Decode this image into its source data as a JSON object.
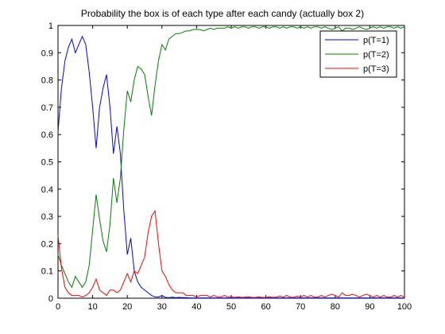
{
  "chart_data": {
    "type": "line",
    "title": "Probability the box is of each type after each candy (actually box 2)",
    "xlabel": "",
    "ylabel": "",
    "xlim": [
      0,
      100
    ],
    "ylim": [
      0,
      1
    ],
    "xticks": [
      "0",
      "10",
      "20",
      "30",
      "40",
      "50",
      "60",
      "70",
      "80",
      "90",
      "100"
    ],
    "yticks": [
      "0",
      "0.1",
      "0.2",
      "0.3",
      "0.4",
      "0.5",
      "0.6",
      "0.7",
      "0.8",
      "0.9",
      "1"
    ],
    "grid": false,
    "legend_placement": "top-right",
    "x": [
      0,
      1,
      2,
      3,
      4,
      5,
      6,
      7,
      8,
      9,
      10,
      11,
      12,
      13,
      14,
      15,
      16,
      17,
      18,
      19,
      20,
      21,
      22,
      23,
      24,
      25,
      26,
      27,
      28,
      29,
      30,
      31,
      32,
      33,
      34,
      35,
      36,
      37,
      38,
      39,
      40,
      41,
      42,
      43,
      44,
      45,
      46,
      47,
      48,
      49,
      50,
      51,
      52,
      53,
      54,
      55,
      56,
      57,
      58,
      59,
      60,
      61,
      62,
      63,
      64,
      65,
      66,
      67,
      68,
      69,
      70,
      71,
      72,
      73,
      74,
      75,
      76,
      77,
      78,
      79,
      80,
      81,
      82,
      83,
      84,
      85,
      86,
      87,
      88,
      89,
      90,
      91,
      92,
      93,
      94,
      95,
      96,
      97,
      98,
      99,
      100
    ],
    "series": [
      {
        "name": "p(T=1)",
        "color": "#0000ff",
        "values": [
          0.61,
          0.77,
          0.87,
          0.92,
          0.95,
          0.9,
          0.93,
          0.96,
          0.93,
          0.83,
          0.7,
          0.55,
          0.7,
          0.77,
          0.82,
          0.7,
          0.53,
          0.63,
          0.53,
          0.32,
          0.16,
          0.22,
          0.1,
          0.06,
          0.04,
          0.03,
          0.02,
          0.01,
          0.005,
          0.004,
          0.01,
          0.003,
          0.002,
          0.004,
          0.002,
          0.003,
          0.002,
          0.002,
          0.001,
          0.001,
          0.001,
          0.001,
          0.001,
          0.001,
          0.001,
          0.001,
          0.001,
          0.001,
          0.001,
          0.001,
          0.001,
          0.001,
          0.001,
          0.001,
          0.001,
          0.001,
          0.001,
          0.001,
          0.001,
          0.001,
          0.001,
          0.001,
          0.001,
          0.001,
          0.001,
          0.001,
          0.001,
          0.001,
          0.001,
          0.001,
          0.001,
          0.001,
          0.001,
          0.001,
          0.001,
          0.001,
          0.001,
          0.001,
          0.001,
          0.001,
          0.001,
          0.001,
          0.001,
          0.001,
          0.001,
          0.001,
          0.001,
          0.001,
          0.001,
          0.001,
          0.001,
          0.001,
          0.001,
          0.001,
          0.001,
          0.001,
          0.001,
          0.001,
          0.001,
          0.001,
          0.001
        ]
      },
      {
        "name": "p(T=2)",
        "color": "#008000",
        "values": [
          0.16,
          0.12,
          0.09,
          0.06,
          0.04,
          0.08,
          0.06,
          0.04,
          0.06,
          0.12,
          0.25,
          0.38,
          0.29,
          0.21,
          0.17,
          0.27,
          0.44,
          0.35,
          0.44,
          0.62,
          0.76,
          0.72,
          0.8,
          0.85,
          0.84,
          0.82,
          0.74,
          0.67,
          0.78,
          0.87,
          0.93,
          0.91,
          0.95,
          0.96,
          0.97,
          0.97,
          0.975,
          0.98,
          0.98,
          0.985,
          0.985,
          0.985,
          0.98,
          0.985,
          0.99,
          0.985,
          0.99,
          0.99,
          0.99,
          0.995,
          0.99,
          0.995,
          0.99,
          0.995,
          0.995,
          0.99,
          0.995,
          0.995,
          0.99,
          0.995,
          0.995,
          0.99,
          0.995,
          0.995,
          0.99,
          0.995,
          0.99,
          0.995,
          0.995,
          0.99,
          0.995,
          0.99,
          0.995,
          0.99,
          0.995,
          0.995,
          0.99,
          0.995,
          0.99,
          0.985,
          0.99,
          0.995,
          0.98,
          0.99,
          0.99,
          0.985,
          0.99,
          0.995,
          0.99,
          0.985,
          0.99,
          0.995,
          0.99,
          0.995,
          0.99,
          0.995,
          0.995,
          0.99,
          0.995,
          0.99,
          0.995
        ]
      },
      {
        "name": "p(T=3)",
        "color": "#ff0000",
        "values": [
          0.23,
          0.11,
          0.04,
          0.02,
          0.01,
          0.01,
          0.01,
          0.005,
          0.01,
          0.02,
          0.04,
          0.07,
          0.03,
          0.02,
          0.01,
          0.03,
          0.03,
          0.02,
          0.03,
          0.06,
          0.09,
          0.06,
          0.1,
          0.09,
          0.12,
          0.15,
          0.24,
          0.3,
          0.32,
          0.2,
          0.1,
          0.08,
          0.05,
          0.03,
          0.02,
          0.02,
          0.02,
          0.01,
          0.01,
          0.01,
          0.005,
          0.01,
          0.01,
          0.01,
          0.005,
          0.01,
          0.005,
          0.005,
          0.01,
          0.005,
          0.005,
          0.003,
          0.005,
          0.003,
          0.004,
          0.005,
          0.003,
          0.003,
          0.005,
          0.003,
          0.003,
          0.005,
          0.003,
          0.004,
          0.008,
          0.004,
          0.01,
          0.004,
          0.003,
          0.008,
          0.004,
          0.01,
          0.004,
          0.01,
          0.004,
          0.004,
          0.01,
          0.004,
          0.01,
          0.015,
          0.01,
          0.004,
          0.02,
          0.01,
          0.01,
          0.015,
          0.01,
          0.004,
          0.01,
          0.015,
          0.01,
          0.004,
          0.01,
          0.004,
          0.01,
          0.004,
          0.004,
          0.01,
          0.004,
          0.01,
          0.004
        ]
      }
    ]
  }
}
